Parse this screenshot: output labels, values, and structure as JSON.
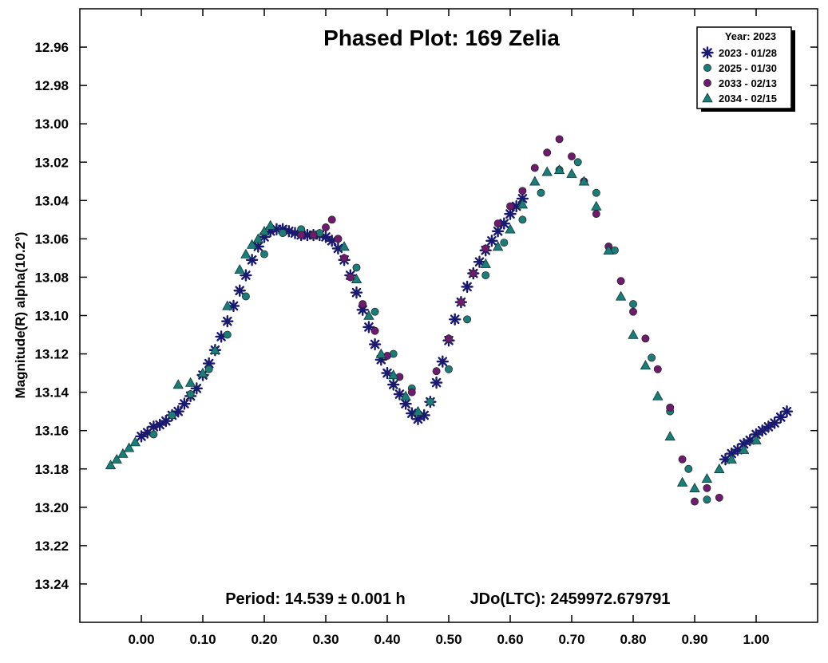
{
  "chart_data": {
    "type": "scatter",
    "title": "Phased Plot: 169 Zelia",
    "ylabel": "Magnitude(R) alpha(10.2°)",
    "xlabel": "",
    "xlim": [
      -0.1,
      1.1
    ],
    "ylim": [
      13.26,
      12.94
    ],
    "y_inverted": true,
    "x_ticks": [
      "0.00",
      "0.10",
      "0.20",
      "0.30",
      "0.40",
      "0.50",
      "0.60",
      "0.70",
      "0.80",
      "0.90",
      "1.00"
    ],
    "y_ticks": [
      "12.96",
      "12.98",
      "13.00",
      "13.02",
      "13.04",
      "13.06",
      "13.08",
      "13.10",
      "13.12",
      "13.14",
      "13.16",
      "13.18",
      "13.20",
      "13.22",
      "13.24"
    ],
    "footer_period": "Period: 14.539 ± 0.001 h",
    "footer_jd": "JDo(LTC): 2459972.679791",
    "legend_title": "Year: 2023",
    "legend_position": "top-right",
    "grid": false,
    "series": [
      {
        "name": "2023 - 01/28",
        "marker": "asterisk",
        "color": "#191970",
        "x": [
          0.0,
          0.01,
          0.02,
          0.03,
          0.04,
          0.05,
          0.06,
          0.07,
          0.08,
          0.09,
          0.1,
          0.11,
          0.12,
          0.13,
          0.14,
          0.15,
          0.16,
          0.17,
          0.18,
          0.19,
          0.2,
          0.21,
          0.22,
          0.23,
          0.24,
          0.25,
          0.26,
          0.27,
          0.28,
          0.29,
          0.3,
          0.31,
          0.32,
          0.33,
          0.34,
          0.35,
          0.36,
          0.37,
          0.38,
          0.39,
          0.4,
          0.41,
          0.42,
          0.43,
          0.44,
          0.45,
          0.46,
          0.47,
          0.48,
          0.49,
          0.5,
          0.51,
          0.52,
          0.53,
          0.54,
          0.55,
          0.56,
          0.57,
          0.58,
          0.59,
          0.6,
          0.61,
          0.62,
          0.95,
          0.96,
          0.97,
          0.98,
          0.99,
          1.0,
          1.01,
          1.02,
          1.03,
          1.04,
          1.05
        ],
        "y": [
          13.163,
          13.161,
          13.158,
          13.157,
          13.155,
          13.152,
          13.15,
          13.146,
          13.142,
          13.138,
          13.131,
          13.125,
          13.118,
          13.111,
          13.103,
          13.095,
          13.087,
          13.079,
          13.071,
          13.064,
          13.059,
          13.056,
          13.055,
          13.055,
          13.056,
          13.057,
          13.058,
          13.058,
          13.058,
          13.058,
          13.059,
          13.061,
          13.065,
          13.071,
          13.079,
          13.088,
          13.097,
          13.106,
          13.115,
          13.123,
          13.13,
          13.136,
          13.141,
          13.146,
          13.151,
          13.154,
          13.152,
          13.145,
          13.135,
          13.124,
          13.113,
          13.102,
          13.093,
          13.085,
          13.078,
          13.072,
          13.066,
          13.061,
          13.056,
          13.052,
          13.047,
          13.043,
          13.039,
          13.175,
          13.172,
          13.17,
          13.167,
          13.165,
          13.162,
          13.16,
          13.158,
          13.156,
          13.153,
          13.15
        ]
      },
      {
        "name": "2025 - 01/30",
        "marker": "circle",
        "color": "#1b7c78",
        "x": [
          0.02,
          0.05,
          0.08,
          0.11,
          0.14,
          0.17,
          0.2,
          0.23,
          0.26,
          0.29,
          0.32,
          0.35,
          0.38,
          0.41,
          0.44,
          0.47,
          0.5,
          0.53,
          0.56,
          0.59,
          0.62,
          0.65,
          0.68,
          0.71,
          0.74,
          0.77,
          0.8,
          0.83,
          0.86,
          0.89,
          0.92
        ],
        "y": [
          13.162,
          13.152,
          13.141,
          13.128,
          13.11,
          13.09,
          13.068,
          13.057,
          13.055,
          13.057,
          13.06,
          13.075,
          13.098,
          13.12,
          13.138,
          13.145,
          13.128,
          13.102,
          13.079,
          13.062,
          13.05,
          13.036,
          13.024,
          13.02,
          13.036,
          13.066,
          13.094,
          13.122,
          13.15,
          13.18,
          13.196
        ]
      },
      {
        "name": "2033 - 02/13",
        "marker": "circle",
        "color": "#6e1b6e",
        "x": [
          0.26,
          0.28,
          0.3,
          0.31,
          0.32,
          0.33,
          0.34,
          0.36,
          0.38,
          0.4,
          0.42,
          0.44,
          0.48,
          0.5,
          0.52,
          0.54,
          0.56,
          0.58,
          0.6,
          0.62,
          0.64,
          0.66,
          0.68,
          0.7,
          0.72,
          0.74,
          0.76,
          0.78,
          0.8,
          0.82,
          0.84,
          0.86,
          0.88,
          0.9,
          0.92,
          0.94
        ],
        "y": [
          13.058,
          13.058,
          13.054,
          13.05,
          13.06,
          13.07,
          13.08,
          13.094,
          13.108,
          13.121,
          13.132,
          13.14,
          13.129,
          13.112,
          13.093,
          13.078,
          13.065,
          13.052,
          13.043,
          13.035,
          13.023,
          13.015,
          13.008,
          13.017,
          13.03,
          13.047,
          13.064,
          13.082,
          13.098,
          13.112,
          13.128,
          13.148,
          13.175,
          13.197,
          13.19,
          13.195
        ]
      },
      {
        "name": "2034 - 02/15",
        "marker": "triangle",
        "color": "#1b7c78",
        "x": [
          -0.05,
          -0.04,
          -0.03,
          -0.02,
          -0.01,
          0.06,
          0.08,
          0.1,
          0.12,
          0.14,
          0.16,
          0.17,
          0.18,
          0.19,
          0.2,
          0.21,
          0.33,
          0.35,
          0.37,
          0.39,
          0.41,
          0.43,
          0.45,
          0.56,
          0.58,
          0.6,
          0.62,
          0.64,
          0.66,
          0.68,
          0.7,
          0.72,
          0.74,
          0.76,
          0.78,
          0.8,
          0.82,
          0.84,
          0.86,
          0.88,
          0.9,
          0.92,
          0.94,
          0.96,
          0.98,
          1.0
        ],
        "y": [
          13.178,
          13.175,
          13.172,
          13.169,
          13.166,
          13.136,
          13.135,
          13.13,
          13.118,
          13.095,
          13.076,
          13.068,
          13.063,
          13.06,
          13.056,
          13.053,
          13.064,
          13.081,
          13.1,
          13.12,
          13.131,
          13.142,
          13.15,
          13.073,
          13.064,
          13.055,
          13.042,
          13.03,
          13.025,
          13.024,
          13.026,
          13.03,
          13.043,
          13.066,
          13.09,
          13.11,
          13.126,
          13.142,
          13.163,
          13.187,
          13.19,
          13.185,
          13.18,
          13.175,
          13.17,
          13.165
        ]
      }
    ]
  }
}
